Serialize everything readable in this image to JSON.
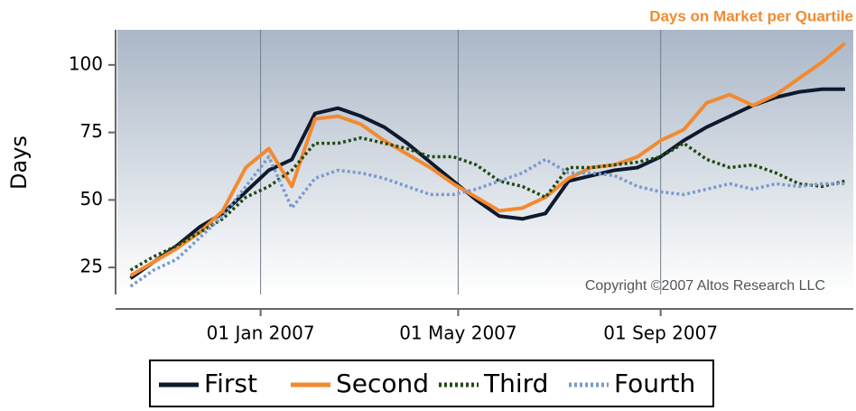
{
  "chart_data": {
    "type": "line",
    "title": "Days on Market per Quartile",
    "ylabel": "Days",
    "annotation": "Copyright ©2007 Altos Research LLC",
    "x": [
      "2006-10-14",
      "2006-10-28",
      "2006-11-11",
      "2006-11-25",
      "2006-12-09",
      "2006-12-23",
      "2007-01-06",
      "2007-01-20",
      "2007-02-03",
      "2007-02-17",
      "2007-03-03",
      "2007-03-17",
      "2007-03-31",
      "2007-04-14",
      "2007-04-28",
      "2007-05-12",
      "2007-05-26",
      "2007-06-09",
      "2007-06-23",
      "2007-07-07",
      "2007-07-21",
      "2007-08-04",
      "2007-08-18",
      "2007-09-01",
      "2007-09-15",
      "2007-09-29",
      "2007-10-13",
      "2007-10-27",
      "2007-11-10",
      "2007-11-24",
      "2007-12-08",
      "2007-12-22"
    ],
    "series": [
      {
        "name": "First",
        "color": "#0d1a2e",
        "style": "solid",
        "values": [
          21,
          27,
          33,
          40,
          45,
          53,
          61,
          65,
          82,
          84,
          81,
          77,
          71,
          64,
          57,
          50,
          44,
          43,
          45,
          57,
          59,
          61,
          62,
          66,
          72,
          77,
          81,
          85,
          88,
          90,
          91,
          91
        ]
      },
      {
        "name": "Second",
        "color": "#f28a30",
        "style": "solid",
        "values": [
          22,
          27,
          32,
          38,
          46,
          62,
          69,
          55,
          80,
          81,
          78,
          72,
          67,
          62,
          56,
          51,
          46,
          47,
          51,
          58,
          62,
          63,
          66,
          72,
          76,
          86,
          89,
          85,
          89,
          95,
          101,
          108
        ]
      },
      {
        "name": "Third",
        "color": "#1f4a12",
        "style": "dotted",
        "values": [
          24,
          29,
          33,
          38,
          43,
          51,
          55,
          61,
          71,
          71,
          73,
          71,
          69,
          66,
          66,
          63,
          57,
          55,
          51,
          62,
          62,
          63,
          64,
          66,
          71,
          65,
          62,
          63,
          60,
          56,
          55,
          57
        ]
      },
      {
        "name": "Fourth",
        "color": "#7a9acc",
        "style": "dotted",
        "values": [
          18,
          24,
          28,
          36,
          44,
          55,
          66,
          47,
          58,
          61,
          60,
          58,
          55,
          52,
          52,
          54,
          57,
          60,
          65,
          60,
          60,
          59,
          55,
          53,
          52,
          54,
          56,
          54,
          56,
          55,
          56,
          56
        ]
      }
    ],
    "xlim": [
      "2006-10-06",
      "2007-12-27"
    ],
    "xticks": [
      {
        "value": "2007-01-01",
        "label": "01 Jan 2007"
      },
      {
        "value": "2007-05-01",
        "label": "01 May 2007"
      },
      {
        "value": "2007-09-01",
        "label": "01 Sep 2007"
      }
    ],
    "ylim": [
      15,
      113
    ],
    "yticks": [
      25,
      50,
      75,
      100
    ],
    "grid": "x",
    "legend": "bottom"
  }
}
